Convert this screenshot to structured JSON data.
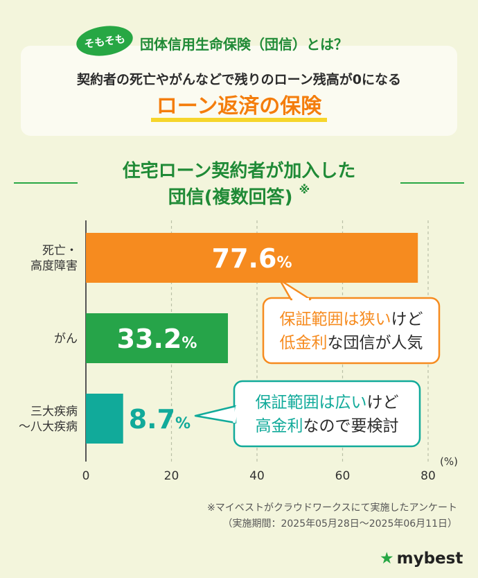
{
  "header": {
    "badge": "そもそも",
    "title": "団体信用生命保険（団信）とは？",
    "subtitle": "契約者の死亡やがんなどで残りのローン残高が0になる",
    "highlight": "ローン返済の保険"
  },
  "chart_data": {
    "type": "bar",
    "orientation": "horizontal",
    "title": "住宅ローン契約者が加入した",
    "title_line2": "団信(複数回答)",
    "title_mark": "※",
    "categories": [
      [
        "死亡・",
        "高度障害"
      ],
      [
        "がん"
      ],
      [
        "三大疾病",
        "～八大疾病"
      ]
    ],
    "values": [
      77.6,
      33.2,
      8.7
    ],
    "value_labels": [
      "77.6",
      "33.2",
      "8.7"
    ],
    "value_unit": "%",
    "xlim": [
      0,
      80
    ],
    "xticks": [
      "0",
      "20",
      "40",
      "60",
      "80"
    ],
    "xunit": "(%)",
    "grid": true,
    "bar_colors": [
      "#f68b1f",
      "#26a449",
      "#11aa9a"
    ],
    "callouts": [
      {
        "color": "#f68b1f",
        "line1": [
          {
            "t": "保証範囲は狭い",
            "h": true
          },
          {
            "t": "けど",
            "h": false
          }
        ],
        "line2": [
          {
            "t": "低金利",
            "h": true
          },
          {
            "t": "な団信が人気",
            "h": false
          }
        ]
      },
      {
        "color": "#11aa9a",
        "line1": [
          {
            "t": "保証範囲は広い",
            "h": true
          },
          {
            "t": "けど",
            "h": false
          }
        ],
        "line2": [
          {
            "t": "高金利",
            "h": true
          },
          {
            "t": "なので要検討",
            "h": false
          }
        ]
      }
    ]
  },
  "footnote": {
    "line1": "※マイベストがクラウドワークスにて実施したアンケート",
    "line2": "（実施期間：2025年05月28日～2025年06月11日）"
  },
  "brand": {
    "star": "★",
    "name": "mybest"
  }
}
